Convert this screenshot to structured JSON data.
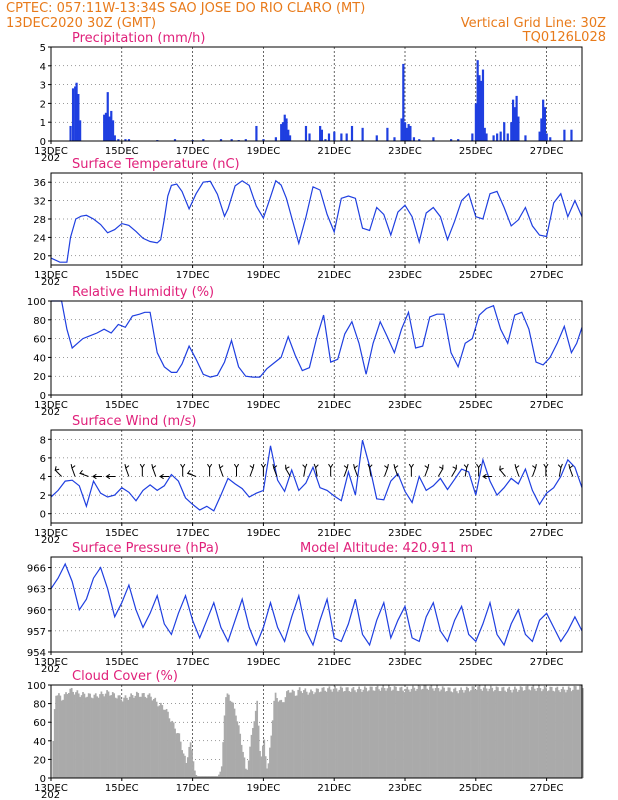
{
  "header": {
    "line1": "CPTEC:   057:11W-13:34S   SAO JOSE DO RIO CLARO (MT)",
    "line2_left": "13DEC2020 30Z (GMT)",
    "line2_right": "Vertical Grid Line: 30Z",
    "line3_right": "TQ0126L028"
  },
  "colors": {
    "header": "#e87a1a",
    "panel_title": "#e0207a",
    "series": "#1f3fe0",
    "cloud": "#aaaaaa"
  },
  "xaxis": {
    "ticks": [
      "13DEC",
      "15DEC",
      "17DEC",
      "19DEC",
      "21DEC",
      "23DEC",
      "25DEC",
      "27DEC"
    ],
    "tick_days": [
      0,
      2,
      4,
      6,
      8,
      10,
      12,
      14
    ],
    "xlim_days": [
      0,
      15
    ],
    "fragment": "202"
  },
  "chart_data": [
    {
      "id": "precip",
      "type": "bar",
      "title": "Precipitation (mm/h)",
      "ylim": [
        0,
        5
      ],
      "yticks": [
        0,
        1,
        2,
        3,
        4,
        5
      ],
      "x_days": [
        0.55,
        0.62,
        0.68,
        0.72,
        0.77,
        0.82,
        1.5,
        1.55,
        1.6,
        1.65,
        1.7,
        1.75,
        1.8,
        1.9,
        2.1,
        2.2,
        3.0,
        3.5,
        4.0,
        4.3,
        4.8,
        5.1,
        5.3,
        5.5,
        5.8,
        6.0,
        6.35,
        6.5,
        6.55,
        6.6,
        6.65,
        6.7,
        6.75,
        7.2,
        7.3,
        7.6,
        7.65,
        7.75,
        7.85,
        8.0,
        8.2,
        8.35,
        8.5,
        8.8,
        9.2,
        9.5,
        9.7,
        9.9,
        9.95,
        10.0,
        10.05,
        10.1,
        10.15,
        10.25,
        10.4,
        10.8,
        11.3,
        11.5,
        11.9,
        12.0,
        12.05,
        12.1,
        12.15,
        12.2,
        12.25,
        12.3,
        12.5,
        12.6,
        12.7,
        12.8,
        12.9,
        13.0,
        13.05,
        13.1,
        13.15,
        13.2,
        13.4,
        13.8,
        13.85,
        13.9,
        13.95,
        14.0,
        14.1,
        14.5,
        14.7
      ],
      "values": [
        0.8,
        2.8,
        2.9,
        3.1,
        2.5,
        1.1,
        1.4,
        1.5,
        2.6,
        1.3,
        1.6,
        1.1,
        0.3,
        0.1,
        0.1,
        0.1,
        0.05,
        0.1,
        0.05,
        0.1,
        0.1,
        0.1,
        0.05,
        0.1,
        0.8,
        0.1,
        0.2,
        0.9,
        1.0,
        1.4,
        1.2,
        0.6,
        0.3,
        0.8,
        0.4,
        0.8,
        0.6,
        0.1,
        0.4,
        0.5,
        0.4,
        0.4,
        0.8,
        0.7,
        0.3,
        0.7,
        0.2,
        1.2,
        4.1,
        1.0,
        0.7,
        0.9,
        0.8,
        0.2,
        0.1,
        0.2,
        0.1,
        0.1,
        0.4,
        2.0,
        4.3,
        3.5,
        3.2,
        3.8,
        0.7,
        0.4,
        0.3,
        0.4,
        0.5,
        1.0,
        0.4,
        1.0,
        2.2,
        1.8,
        2.4,
        1.3,
        0.3,
        0.5,
        1.2,
        2.2,
        1.8,
        0.4,
        0.2,
        0.6,
        0.6
      ]
    },
    {
      "id": "temp",
      "type": "line",
      "title": "Surface Temperature (nC)",
      "ylim": [
        18,
        38
      ],
      "yticks": [
        20,
        24,
        28,
        32,
        36
      ],
      "x_days": [
        0,
        0.25,
        0.45,
        0.55,
        0.7,
        0.85,
        1.0,
        1.2,
        1.4,
        1.6,
        1.8,
        2.0,
        2.2,
        2.4,
        2.6,
        2.8,
        3.0,
        3.1,
        3.2,
        3.3,
        3.4,
        3.55,
        3.7,
        3.9,
        4.1,
        4.3,
        4.5,
        4.7,
        4.9,
        5.0,
        5.2,
        5.4,
        5.6,
        5.8,
        6.0,
        6.2,
        6.35,
        6.5,
        6.65,
        6.8,
        7.0,
        7.2,
        7.4,
        7.6,
        7.8,
        8.0,
        8.2,
        8.4,
        8.6,
        8.8,
        9.0,
        9.2,
        9.4,
        9.6,
        9.8,
        10.0,
        10.2,
        10.4,
        10.6,
        10.8,
        11.0,
        11.2,
        11.4,
        11.6,
        11.8,
        12.0,
        12.2,
        12.4,
        12.6,
        12.8,
        13.0,
        13.2,
        13.4,
        13.6,
        13.8,
        14.0,
        14.2,
        14.4,
        14.6,
        14.8,
        15.0
      ],
      "values": [
        19.5,
        18.6,
        18.6,
        24.0,
        28.0,
        28.6,
        28.8,
        28.0,
        26.8,
        25.0,
        25.7,
        27.0,
        26.6,
        25.3,
        23.8,
        23.1,
        22.8,
        23.5,
        28.0,
        33.0,
        35.3,
        35.6,
        34.0,
        30.2,
        33.5,
        36.0,
        36.2,
        33.4,
        28.6,
        30.2,
        35.2,
        36.3,
        35.3,
        30.8,
        28.2,
        32.8,
        36.3,
        35.4,
        32.5,
        28.3,
        22.7,
        28.4,
        35.0,
        34.3,
        29.0,
        25.2,
        32.5,
        33.0,
        32.5,
        26.0,
        25.5,
        30.5,
        29.0,
        24.5,
        29.5,
        31.0,
        28.5,
        23.0,
        29.3,
        30.5,
        28.5,
        23.5,
        27.5,
        32.0,
        33.5,
        28.5,
        28.0,
        33.5,
        34.0,
        30.5,
        26.5,
        27.8,
        30.5,
        26.5,
        24.5,
        24.2,
        31.5,
        33.5,
        28.5,
        32.0,
        28.5
      ]
    },
    {
      "id": "rh",
      "type": "line",
      "title": "Relative Humidity (%)",
      "ylim": [
        0,
        100
      ],
      "yticks": [
        0,
        20,
        40,
        60,
        80,
        100
      ],
      "x_days": [
        0,
        0.3,
        0.45,
        0.6,
        0.75,
        0.9,
        1.1,
        1.3,
        1.5,
        1.7,
        1.9,
        2.1,
        2.3,
        2.5,
        2.65,
        2.8,
        3.0,
        3.2,
        3.4,
        3.55,
        3.7,
        3.9,
        4.1,
        4.3,
        4.5,
        4.7,
        4.9,
        5.1,
        5.3,
        5.5,
        5.7,
        5.9,
        6.1,
        6.3,
        6.5,
        6.7,
        6.9,
        7.1,
        7.3,
        7.5,
        7.7,
        7.9,
        8.1,
        8.3,
        8.5,
        8.7,
        8.9,
        9.1,
        9.3,
        9.5,
        9.7,
        9.9,
        10.1,
        10.3,
        10.5,
        10.7,
        10.9,
        11.1,
        11.3,
        11.5,
        11.7,
        11.9,
        12.1,
        12.3,
        12.5,
        12.7,
        12.9,
        13.1,
        13.3,
        13.5,
        13.7,
        13.9,
        14.1,
        14.3,
        14.5,
        14.7,
        14.85,
        15.0
      ],
      "values": [
        100,
        100,
        70,
        50,
        55,
        60,
        63,
        66,
        70,
        66,
        75,
        72,
        84,
        86,
        88,
        88,
        45,
        30,
        24,
        24,
        33,
        52,
        38,
        22,
        19,
        21,
        35,
        58,
        30,
        20,
        19,
        19,
        28,
        34,
        40,
        62,
        42,
        26,
        29,
        60,
        85,
        35,
        38,
        65,
        78,
        55,
        22,
        55,
        78,
        62,
        45,
        70,
        88,
        50,
        52,
        83,
        86,
        86,
        45,
        30,
        55,
        60,
        85,
        92,
        95,
        70,
        55,
        85,
        88,
        70,
        35,
        32,
        40,
        55,
        73,
        45,
        55,
        72
      ]
    },
    {
      "id": "wind",
      "type": "line",
      "title": "Surface Wind (m/s)",
      "ylim": [
        -1,
        9
      ],
      "yticks": [
        0,
        2,
        4,
        6,
        8
      ],
      "x_days": [
        0,
        0.2,
        0.4,
        0.6,
        0.8,
        1.0,
        1.2,
        1.4,
        1.6,
        1.8,
        2.0,
        2.2,
        2.4,
        2.6,
        2.8,
        3.0,
        3.2,
        3.4,
        3.6,
        3.8,
        4.0,
        4.2,
        4.4,
        4.6,
        4.8,
        5.0,
        5.2,
        5.4,
        5.6,
        5.8,
        6.0,
        6.2,
        6.4,
        6.6,
        6.8,
        7.0,
        7.2,
        7.4,
        7.6,
        7.8,
        8.0,
        8.2,
        8.4,
        8.6,
        8.8,
        9.0,
        9.2,
        9.4,
        9.6,
        9.8,
        10.0,
        10.2,
        10.4,
        10.6,
        10.8,
        11.0,
        11.2,
        11.4,
        11.6,
        11.8,
        12.0,
        12.2,
        12.4,
        12.6,
        12.8,
        13.0,
        13.2,
        13.4,
        13.6,
        13.8,
        14.0,
        14.2,
        14.4,
        14.6,
        14.8,
        15.0
      ],
      "values": [
        1.8,
        2.5,
        3.5,
        3.6,
        3.0,
        0.8,
        3.5,
        2.2,
        1.8,
        2.0,
        2.8,
        2.3,
        1.4,
        2.5,
        3.1,
        2.5,
        3.0,
        4.2,
        3.5,
        1.7,
        1.0,
        0.4,
        0.8,
        0.3,
        2.0,
        3.8,
        3.2,
        2.7,
        1.8,
        2.2,
        2.5,
        7.3,
        3.6,
        2.4,
        4.7,
        2.5,
        3.3,
        5.0,
        2.8,
        2.5,
        1.9,
        1.4,
        4.5,
        2.0,
        7.9,
        5.1,
        1.6,
        1.5,
        3.5,
        4.3,
        2.4,
        1.2,
        4.0,
        2.5,
        3.0,
        3.8,
        2.6,
        3.7,
        4.8,
        4.5,
        2.0,
        5.8,
        3.5,
        2.0,
        2.8,
        3.8,
        3.2,
        4.8,
        2.5,
        1.0,
        2.2,
        2.8,
        4.0,
        5.8,
        5.0,
        2.8
      ]
    },
    {
      "id": "pressure",
      "type": "line",
      "title": "Surface Pressure (hPa)",
      "note": "Model Altitude: 420.911  m",
      "ylim": [
        954,
        967.5
      ],
      "yticks": [
        954,
        957,
        960,
        963,
        966
      ],
      "x_days": [
        0,
        0.2,
        0.4,
        0.6,
        0.8,
        1.0,
        1.2,
        1.4,
        1.6,
        1.8,
        2.0,
        2.2,
        2.4,
        2.6,
        2.8,
        3.0,
        3.2,
        3.4,
        3.6,
        3.8,
        4.0,
        4.2,
        4.4,
        4.6,
        4.8,
        5.0,
        5.2,
        5.4,
        5.6,
        5.8,
        6.0,
        6.2,
        6.4,
        6.6,
        6.8,
        7.0,
        7.2,
        7.4,
        7.6,
        7.8,
        8.0,
        8.2,
        8.4,
        8.6,
        8.8,
        9.0,
        9.2,
        9.4,
        9.6,
        9.8,
        10.0,
        10.2,
        10.4,
        10.6,
        10.8,
        11.0,
        11.2,
        11.4,
        11.6,
        11.8,
        12.0,
        12.2,
        12.4,
        12.6,
        12.8,
        13.0,
        13.2,
        13.4,
        13.6,
        13.8,
        14.0,
        14.2,
        14.4,
        14.6,
        14.8,
        15.0
      ],
      "values": [
        963.0,
        964.5,
        966.5,
        964.0,
        960.0,
        961.5,
        964.5,
        966.0,
        963.0,
        959.0,
        961.0,
        963.5,
        960.0,
        957.5,
        959.5,
        962.0,
        958.0,
        956.5,
        959.5,
        962.0,
        958.5,
        956.0,
        958.5,
        961.0,
        957.5,
        955.5,
        958.5,
        961.5,
        957.5,
        955.0,
        957.5,
        961.0,
        957.5,
        955.5,
        959.0,
        962.0,
        957.0,
        955.0,
        958.5,
        961.5,
        956.0,
        955.5,
        958.0,
        961.5,
        956.5,
        955.0,
        958.5,
        961.0,
        956.0,
        958.5,
        960.5,
        956.0,
        955.5,
        959.0,
        961.0,
        957.0,
        955.5,
        958.5,
        960.5,
        956.5,
        955.5,
        958.0,
        961.0,
        956.5,
        955.0,
        958.0,
        960.0,
        956.5,
        955.5,
        958.5,
        959.5,
        957.5,
        955.5,
        957.0,
        959.0,
        957.0
      ]
    },
    {
      "id": "cloud",
      "type": "area",
      "title": "Cloud Cover (%)",
      "ylim": [
        0,
        100
      ],
      "yticks": [
        0,
        20,
        40,
        60,
        80,
        100
      ],
      "x_days": [
        0,
        0.1,
        0.3,
        0.5,
        0.8,
        1.2,
        1.6,
        2.0,
        2.4,
        2.8,
        3.0,
        3.2,
        3.4,
        3.6,
        3.7,
        3.8,
        3.9,
        4.0,
        4.05,
        4.1,
        4.2,
        4.35,
        4.5,
        4.7,
        4.8,
        4.9,
        5.0,
        5.2,
        5.4,
        5.5,
        5.7,
        5.8,
        5.9,
        6.0,
        6.1,
        6.3,
        6.5,
        6.7,
        6.9,
        7.0,
        7.3,
        7.6,
        8.0,
        8.5,
        9.0,
        9.5,
        10.0,
        10.5,
        11.0,
        11.5,
        12.0,
        12.5,
        13.0,
        13.5,
        14.0,
        14.5,
        15.0
      ],
      "values": [
        0,
        92,
        85,
        95,
        90,
        88,
        92,
        85,
        90,
        88,
        80,
        75,
        60,
        45,
        30,
        15,
        40,
        20,
        5,
        2,
        2,
        2,
        2,
        2,
        10,
        85,
        90,
        70,
        30,
        5,
        60,
        80,
        20,
        40,
        5,
        90,
        80,
        95,
        90,
        95,
        92,
        95,
        96,
        95,
        96,
        97,
        95,
        98,
        96,
        94,
        97,
        96,
        95,
        97,
        96,
        95,
        98
      ]
    }
  ]
}
